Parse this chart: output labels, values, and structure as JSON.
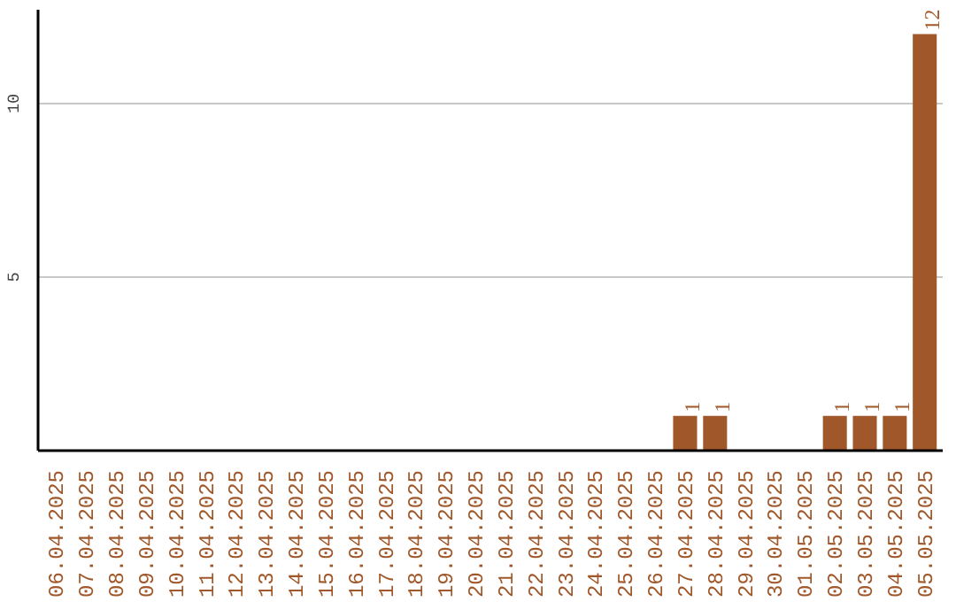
{
  "chart_data": {
    "type": "bar",
    "categories": [
      "06.04.2025",
      "07.04.2025",
      "08.04.2025",
      "09.04.2025",
      "10.04.2025",
      "11.04.2025",
      "12.04.2025",
      "13.04.2025",
      "14.04.2025",
      "15.04.2025",
      "16.04.2025",
      "17.04.2025",
      "18.04.2025",
      "19.04.2025",
      "20.04.2025",
      "21.04.2025",
      "22.04.2025",
      "23.04.2025",
      "24.04.2025",
      "25.04.2025",
      "26.04.2025",
      "27.04.2025",
      "28.04.2025",
      "29.04.2025",
      "30.04.2025",
      "01.05.2025",
      "02.05.2025",
      "03.05.2025",
      "04.05.2025",
      "05.05.2025"
    ],
    "values": [
      0,
      0,
      0,
      0,
      0,
      0,
      0,
      0,
      0,
      0,
      0,
      0,
      0,
      0,
      0,
      0,
      0,
      0,
      0,
      0,
      0,
      1,
      1,
      0,
      0,
      0,
      1,
      1,
      1,
      12
    ],
    "value_labels": [
      null,
      null,
      null,
      null,
      null,
      null,
      null,
      null,
      null,
      null,
      null,
      null,
      null,
      null,
      null,
      null,
      null,
      null,
      null,
      null,
      null,
      "1",
      "1",
      null,
      null,
      null,
      "1",
      "1",
      "1",
      "12"
    ],
    "color": "#a0582a",
    "ylim": [
      0,
      12.7
    ],
    "yticks": [
      5,
      10
    ],
    "grid": "y"
  }
}
